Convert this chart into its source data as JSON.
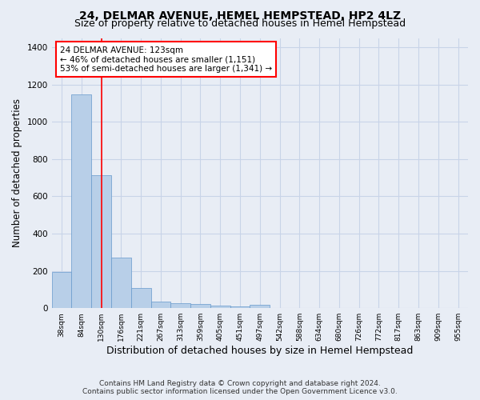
{
  "title1": "24, DELMAR AVENUE, HEMEL HEMPSTEAD, HP2 4LZ",
  "title2": "Size of property relative to detached houses in Hemel Hempstead",
  "xlabel": "Distribution of detached houses by size in Hemel Hempstead",
  "ylabel": "Number of detached properties",
  "footer1": "Contains HM Land Registry data © Crown copyright and database right 2024.",
  "footer2": "Contains public sector information licensed under the Open Government Licence v3.0.",
  "bar_labels": [
    "38sqm",
    "84sqm",
    "130sqm",
    "176sqm",
    "221sqm",
    "267sqm",
    "313sqm",
    "359sqm",
    "405sqm",
    "451sqm",
    "497sqm",
    "542sqm",
    "588sqm",
    "634sqm",
    "680sqm",
    "726sqm",
    "772sqm",
    "817sqm",
    "863sqm",
    "909sqm",
    "955sqm"
  ],
  "bar_values": [
    195,
    1148,
    715,
    270,
    107,
    34,
    27,
    24,
    14,
    10,
    16,
    0,
    0,
    0,
    0,
    0,
    0,
    0,
    0,
    0,
    0
  ],
  "bar_color": "#b8cfe8",
  "bar_edge_color": "#6699cc",
  "vline_x": 2.0,
  "vline_color": "red",
  "annotation_text": "24 DELMAR AVENUE: 123sqm\n← 46% of detached houses are smaller (1,151)\n53% of semi-detached houses are larger (1,341) →",
  "annotation_box_color": "white",
  "annotation_box_edge_color": "red",
  "ylim": [
    0,
    1450
  ],
  "yticks": [
    0,
    200,
    400,
    600,
    800,
    1000,
    1200,
    1400
  ],
  "grid_color": "#c8d4e8",
  "bg_color": "#e8edf5",
  "title1_fontsize": 10,
  "title2_fontsize": 9,
  "xlabel_fontsize": 9,
  "ylabel_fontsize": 8.5,
  "footer_fontsize": 6.5
}
